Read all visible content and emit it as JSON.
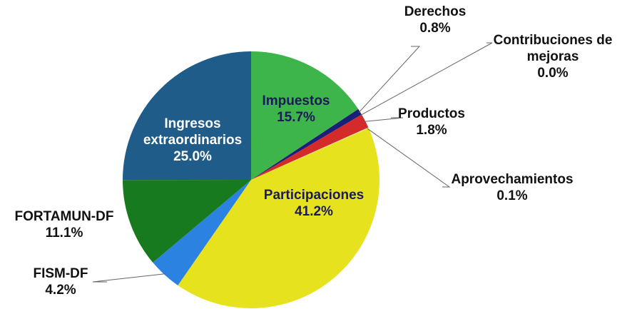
{
  "chart_data": {
    "type": "pie",
    "categories": [
      "Impuestos",
      "Derechos",
      "Contribuciones de mejoras",
      "Productos",
      "Aprovechamientos",
      "Participaciones",
      "FISM-DF",
      "FORTAMUN-DF",
      "Ingresos extraordinarios"
    ],
    "values": [
      15.7,
      0.8,
      0.0,
      1.8,
      0.1,
      41.2,
      4.2,
      11.1,
      25.0
    ],
    "value_labels": [
      "15.7%",
      "0.8%",
      "0.0%",
      "1.8%",
      "0.1%",
      "41.2%",
      "4.2%",
      "11.1%",
      "25.0%"
    ],
    "colors": [
      "#3db54a",
      "#1b1f7a",
      "#6a9a3a",
      "#d42a2a",
      "#f0f0a0",
      "#e6e21e",
      "#2b82e0",
      "#187a1e",
      "#1f5c8a"
    ]
  }
}
